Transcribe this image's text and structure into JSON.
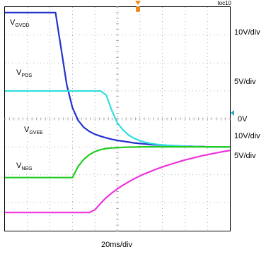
{
  "figure_id": "toc10",
  "chart_data": {
    "type": "line",
    "x_scale": "20ms/div",
    "grid": true,
    "x_divisions": 10,
    "y_divisions": 8,
    "x": [
      0,
      0.25,
      0.5,
      0.75,
      1,
      1.25,
      1.5,
      1.75,
      2,
      2.25,
      2.5,
      2.75,
      3,
      3.25,
      3.5,
      3.75,
      4,
      4.25,
      4.5,
      4.75,
      5,
      5.25,
      5.5,
      5.75,
      6,
      6.25,
      6.5,
      6.75,
      7,
      7.25,
      7.5,
      7.75,
      8,
      8.25,
      8.5,
      8.75,
      9,
      9.25,
      9.5,
      9.75,
      10
    ],
    "series": [
      {
        "name": "VGVDD",
        "label_main": "V",
        "label_sub": "GVDD",
        "color": "#2233cc",
        "scale": "10V/div",
        "values": [
          7.8,
          7.8,
          7.8,
          7.8,
          7.8,
          7.8,
          7.8,
          7.8,
          7.8,
          7.8,
          6.5,
          5.2,
          4.4,
          3.95,
          3.7,
          3.55,
          3.45,
          3.38,
          3.32,
          3.27,
          3.23,
          3.2,
          3.17,
          3.14,
          3.12,
          3.1,
          3.08,
          3.07,
          3.06,
          3.05,
          3.04,
          3.03,
          3.02,
          3.02,
          3.01,
          3.01,
          3.0,
          3.0,
          3.0,
          3.0,
          3.0
        ]
      },
      {
        "name": "VPOS",
        "label_main": "V",
        "label_sub": "POS",
        "color": "#33dddd",
        "scale": "5V/div",
        "values": [
          5.0,
          5.0,
          5.0,
          5.0,
          5.0,
          5.0,
          5.0,
          5.0,
          5.0,
          5.0,
          5.0,
          5.0,
          5.0,
          5.0,
          5.0,
          5.0,
          5.0,
          5.0,
          4.85,
          4.3,
          3.85,
          3.6,
          3.42,
          3.3,
          3.22,
          3.16,
          3.12,
          3.09,
          3.07,
          3.05,
          3.04,
          3.03,
          3.02,
          3.01,
          3.01,
          3.0,
          3.0,
          3.0,
          3.0,
          3.0,
          3.0
        ]
      },
      {
        "name": "VGVEE",
        "label_main": "V",
        "label_sub": "GVEE",
        "color": "#22cc22",
        "scale": "10V/div",
        "values": [
          1.9,
          1.9,
          1.9,
          1.9,
          1.9,
          1.9,
          1.9,
          1.9,
          1.9,
          1.9,
          1.9,
          1.9,
          1.9,
          2.3,
          2.55,
          2.72,
          2.83,
          2.9,
          2.94,
          2.96,
          2.97,
          2.98,
          2.99,
          2.99,
          3.0,
          3.0,
          3.0,
          3.0,
          3.0,
          3.0,
          3.0,
          3.0,
          3.0,
          3.0,
          3.0,
          3.0,
          3.0,
          3.0,
          3.0,
          3.0,
          3.0
        ]
      },
      {
        "name": "VNEG",
        "label_main": "V",
        "label_sub": "NEG",
        "color": "#ee33dd",
        "scale": "5V/div",
        "values": [
          0.65,
          0.65,
          0.65,
          0.65,
          0.65,
          0.65,
          0.65,
          0.65,
          0.65,
          0.65,
          0.65,
          0.65,
          0.65,
          0.65,
          0.65,
          0.65,
          0.75,
          0.98,
          1.18,
          1.35,
          1.5,
          1.63,
          1.75,
          1.86,
          1.96,
          2.05,
          2.13,
          2.21,
          2.28,
          2.35,
          2.41,
          2.47,
          2.53,
          2.58,
          2.63,
          2.68,
          2.72,
          2.76,
          2.8,
          2.84,
          2.87
        ]
      }
    ]
  },
  "right_labels": {
    "gvdd_scale": "10V/div",
    "pos_scale": "5V/div",
    "zero": "0V",
    "gvee_scale": "10V/div",
    "neg_scale": "5V/div"
  },
  "colors": {
    "marker": "#ee8822",
    "ground_marker": "#22aacc",
    "grid": "#999999"
  }
}
